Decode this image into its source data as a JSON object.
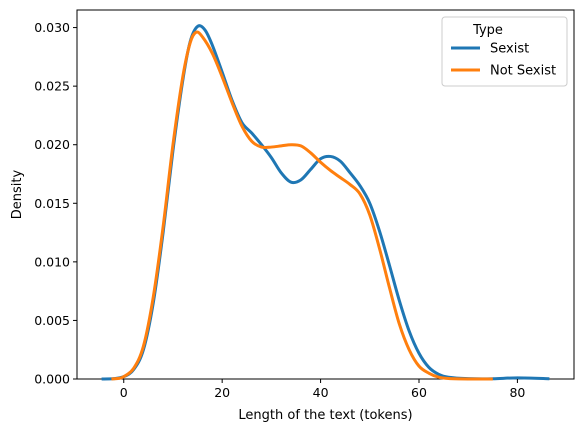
{
  "chart_data": {
    "type": "line",
    "title": "",
    "xlabel": "Length of the text (tokens)",
    "ylabel": "Density",
    "xlim": [
      -9.5,
      91.5
    ],
    "ylim": [
      0,
      0.0315
    ],
    "xticks": [
      0,
      20,
      40,
      60,
      80
    ],
    "yticks": [
      0.0,
      0.005,
      0.01,
      0.015,
      0.02,
      0.025,
      0.03
    ],
    "ytick_labels": [
      "0.000",
      "0.005",
      "0.010",
      "0.015",
      "0.020",
      "0.025",
      "0.030"
    ],
    "grid": false,
    "legend": {
      "title": "Type",
      "placement": "top-right"
    },
    "series": [
      {
        "name": "Sexist",
        "color": "#1f77b4",
        "points": [
          [
            -4.5,
            0.0
          ],
          [
            -2,
            3e-05
          ],
          [
            0,
            0.0002
          ],
          [
            2,
            0.0008
          ],
          [
            4,
            0.0025
          ],
          [
            6,
            0.0065
          ],
          [
            8,
            0.0125
          ],
          [
            10,
            0.0195
          ],
          [
            12,
            0.0255
          ],
          [
            13.5,
            0.0288
          ],
          [
            15,
            0.0301
          ],
          [
            16.5,
            0.0298
          ],
          [
            18,
            0.0285
          ],
          [
            20,
            0.0262
          ],
          [
            22,
            0.0238
          ],
          [
            24,
            0.0219
          ],
          [
            26,
            0.021
          ],
          [
            28,
            0.02
          ],
          [
            30,
            0.0189
          ],
          [
            32,
            0.0176
          ],
          [
            34,
            0.0168
          ],
          [
            36,
            0.017
          ],
          [
            38,
            0.0179
          ],
          [
            40,
            0.0188
          ],
          [
            42,
            0.019
          ],
          [
            44,
            0.0186
          ],
          [
            46,
            0.0176
          ],
          [
            48,
            0.0165
          ],
          [
            50,
            0.015
          ],
          [
            52,
            0.0126
          ],
          [
            54,
            0.0097
          ],
          [
            56,
            0.0067
          ],
          [
            58,
            0.0041
          ],
          [
            60,
            0.0022
          ],
          [
            62,
            0.001
          ],
          [
            64,
            0.0004
          ],
          [
            66,
            0.00015
          ],
          [
            70,
            3e-05
          ],
          [
            75,
            2e-05
          ],
          [
            80,
            0.0001
          ],
          [
            86.5,
            2e-05
          ]
        ]
      },
      {
        "name": "Not Sexist",
        "color": "#ff7f0e",
        "points": [
          [
            -2.5,
            0.0
          ],
          [
            -1,
            5e-05
          ],
          [
            0,
            0.0002
          ],
          [
            2,
            0.0009
          ],
          [
            4,
            0.0028
          ],
          [
            6,
            0.007
          ],
          [
            8,
            0.013
          ],
          [
            10,
            0.02
          ],
          [
            12,
            0.0258
          ],
          [
            13.5,
            0.0287
          ],
          [
            14.7,
            0.0296
          ],
          [
            16,
            0.0292
          ],
          [
            18,
            0.0278
          ],
          [
            20,
            0.0258
          ],
          [
            22,
            0.0236
          ],
          [
            24,
            0.0216
          ],
          [
            26,
            0.0203
          ],
          [
            28,
            0.0198
          ],
          [
            30,
            0.0198
          ],
          [
            32,
            0.0199
          ],
          [
            34,
            0.02
          ],
          [
            36,
            0.0199
          ],
          [
            38,
            0.0193
          ],
          [
            40,
            0.0185
          ],
          [
            42,
            0.0178
          ],
          [
            44,
            0.0172
          ],
          [
            46,
            0.0166
          ],
          [
            48,
            0.0158
          ],
          [
            50,
            0.014
          ],
          [
            52,
            0.0111
          ],
          [
            54,
            0.0078
          ],
          [
            56,
            0.0047
          ],
          [
            58,
            0.0025
          ],
          [
            60,
            0.0011
          ],
          [
            62,
            0.0005
          ],
          [
            64,
            0.00015
          ],
          [
            66,
            4e-05
          ],
          [
            70,
            0.0
          ],
          [
            75,
            0.0
          ]
        ]
      }
    ]
  }
}
